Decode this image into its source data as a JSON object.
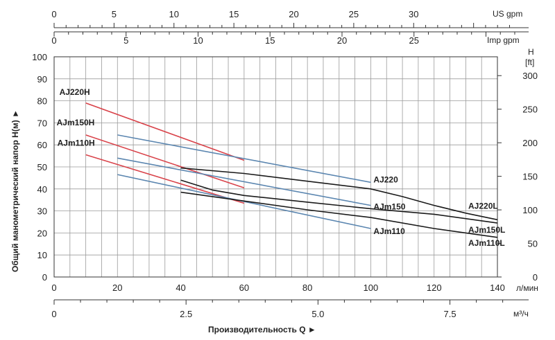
{
  "chart_data": {
    "type": "line",
    "title": "",
    "xlabel": "Производительность Q ►",
    "ylabel": "Общий манометрический напор H(м) ►",
    "x_unit": "л/мин",
    "x_range": [
      0,
      140
    ],
    "x_ticks": [
      "0",
      "20",
      "40",
      "60",
      "80",
      "100",
      "120",
      "140"
    ],
    "y_range": [
      0,
      100
    ],
    "y_ticks": [
      "0",
      "10",
      "20",
      "30",
      "40",
      "50",
      "60",
      "70",
      "80",
      "90",
      "100"
    ],
    "right_axis": {
      "label_line1": "H",
      "label_line2": "[ft]",
      "ticks": [
        "0",
        "50",
        "100",
        "150",
        "200",
        "250",
        "300"
      ]
    },
    "top_axis_us": {
      "unit": "US gpm",
      "ticks": [
        "0",
        "5",
        "10",
        "15",
        "20",
        "25",
        "30"
      ]
    },
    "top_axis_imp": {
      "unit": "Imp gpm",
      "ticks": [
        "0",
        "5",
        "10",
        "15",
        "20",
        "25"
      ]
    },
    "bottom_axis_m3": {
      "unit": "м³/ч",
      "ticks": [
        "0",
        "2.5",
        "5.0",
        "7.5"
      ]
    },
    "grid": true,
    "series": [
      {
        "name": "AJ220H",
        "color": "#d9434a",
        "x": [
          10,
          60
        ],
        "y": [
          79,
          53
        ]
      },
      {
        "name": "AJm150H",
        "color": "#d9434a",
        "x": [
          10,
          60
        ],
        "y": [
          64.5,
          40.5
        ]
      },
      {
        "name": "AJm110H",
        "color": "#d9434a",
        "x": [
          10,
          60
        ],
        "y": [
          55.5,
          33.5
        ]
      },
      {
        "name": "AJ220",
        "color": "#5b86b0",
        "x": [
          20,
          100
        ],
        "y": [
          64.5,
          43
        ]
      },
      {
        "name": "AJm150",
        "color": "#5b86b0",
        "x": [
          20,
          100
        ],
        "y": [
          54,
          32.5
        ]
      },
      {
        "name": "AJm110",
        "color": "#5b86b0",
        "x": [
          20,
          100
        ],
        "y": [
          46.5,
          22
        ]
      },
      {
        "name": "AJ220L",
        "color": "#1a1a1a",
        "x": [
          40,
          60,
          80,
          100,
          110,
          120,
          130,
          140
        ],
        "y": [
          49.5,
          47,
          43.5,
          40,
          36.5,
          32.5,
          29,
          26
        ]
      },
      {
        "name": "AJm150L",
        "color": "#1a1a1a",
        "x": [
          40,
          50,
          60,
          80,
          100,
          120,
          140
        ],
        "y": [
          44,
          39.5,
          37,
          34,
          31,
          28.5,
          24.5
        ]
      },
      {
        "name": "AJm110L",
        "color": "#1a1a1a",
        "x": [
          40,
          60,
          80,
          100,
          120,
          140
        ],
        "y": [
          38.5,
          34.5,
          30.5,
          27,
          22,
          18
        ]
      }
    ]
  }
}
